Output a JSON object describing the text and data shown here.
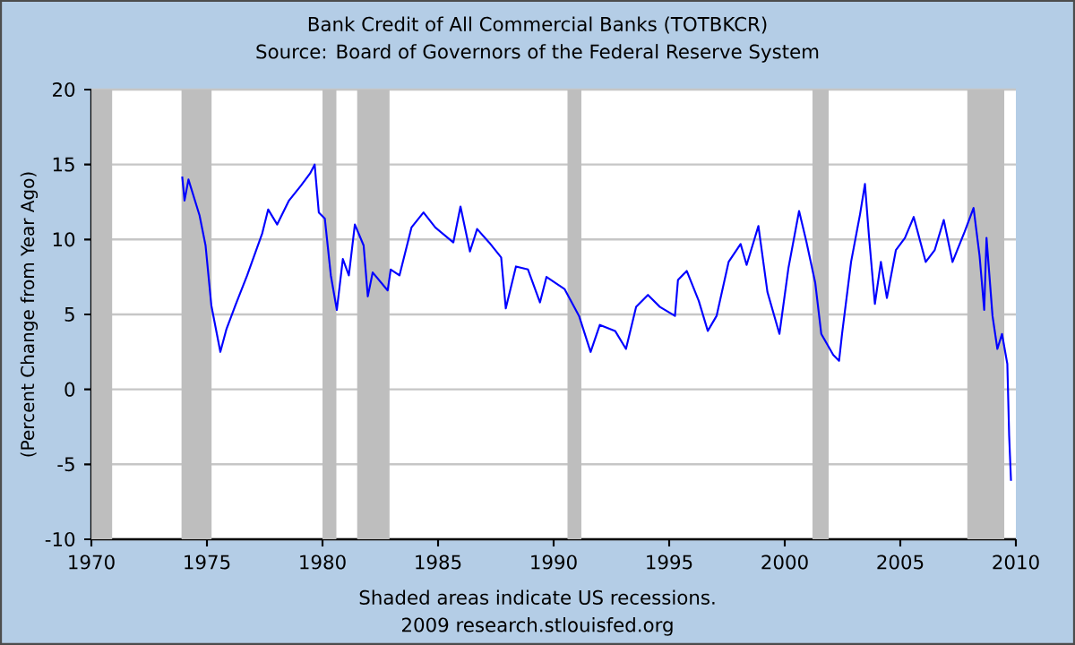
{
  "chart_data": {
    "type": "line",
    "title": "Bank Credit of All Commercial Banks (TOTBKCR)",
    "subtitle": "Source: Board of Governors of the Federal Reserve System",
    "ylabel": "(Percent Change from Year Ago)",
    "annotations": [
      "Shaded areas indicate US recessions.",
      "2009 research.stlouisfed.org"
    ],
    "series": [
      {
        "color": "#0000ff",
        "x": [
          1973.93,
          1974.03,
          1974.2,
          1974.68,
          1974.94,
          1975.19,
          1975.58,
          1975.84,
          1976.23,
          1976.74,
          1977.39,
          1977.65,
          1978.04,
          1978.55,
          1979.07,
          1979.46,
          1979.66,
          1979.84,
          1980.1,
          1980.36,
          1980.62,
          1980.88,
          1981.14,
          1981.4,
          1981.78,
          1981.96,
          1982.17,
          1982.82,
          1982.95,
          1983.33,
          1983.85,
          1984.37,
          1984.88,
          1985.66,
          1985.97,
          1986.38,
          1986.69,
          1987.21,
          1987.73,
          1987.93,
          1988.37,
          1988.89,
          1989.41,
          1989.69,
          1990.47,
          1991.1,
          1991.6,
          1992.0,
          1992.66,
          1993.13,
          1993.57,
          1994.08,
          1994.6,
          1995.25,
          1995.38,
          1995.76,
          1996.28,
          1996.67,
          1997.05,
          1997.57,
          1998.09,
          1998.35,
          1998.86,
          1999.25,
          1999.77,
          2000.16,
          2000.62,
          2000.93,
          2001.32,
          2001.58,
          2002.1,
          2002.35,
          2002.48,
          2002.87,
          2003.26,
          2003.47,
          2003.64,
          2003.9,
          2004.16,
          2004.42,
          2004.81,
          2005.2,
          2005.58,
          2006.1,
          2006.49,
          2006.88,
          2007.26,
          2007.78,
          2008.17,
          2008.43,
          2008.63,
          2008.73,
          2008.99,
          2009.2,
          2009.4,
          2009.63,
          2009.71,
          2009.79
        ],
        "values": [
          14.2,
          12.6,
          14.0,
          11.6,
          9.6,
          5.6,
          2.5,
          4.0,
          5.6,
          7.6,
          10.4,
          12.0,
          11.0,
          12.6,
          13.6,
          14.4,
          15.0,
          11.8,
          11.4,
          7.6,
          5.3,
          8.7,
          7.6,
          11.0,
          9.6,
          6.2,
          7.8,
          6.6,
          8.0,
          7.6,
          10.8,
          11.8,
          10.8,
          9.8,
          12.2,
          9.2,
          10.7,
          9.8,
          8.8,
          5.4,
          8.2,
          8.0,
          5.8,
          7.5,
          6.7,
          4.9,
          2.5,
          4.3,
          3.9,
          2.7,
          5.5,
          6.3,
          5.5,
          4.9,
          7.3,
          7.9,
          5.9,
          3.9,
          4.9,
          8.5,
          9.7,
          8.3,
          10.9,
          6.5,
          3.7,
          8.1,
          11.9,
          9.9,
          7.1,
          3.7,
          2.3,
          1.9,
          3.7,
          8.5,
          11.7,
          13.7,
          10.3,
          5.7,
          8.5,
          6.1,
          9.3,
          10.1,
          11.5,
          8.5,
          9.3,
          11.3,
          8.5,
          10.5,
          12.1,
          8.9,
          5.3,
          10.1,
          4.9,
          2.7,
          3.7,
          1.7,
          -3.1,
          -6.1
        ]
      }
    ],
    "bands": [
      {
        "axis": "x",
        "from": 1970,
        "to": 1970.9,
        "color": "#bebebe"
      },
      {
        "axis": "x",
        "from": 1973.9,
        "to": 1975.2,
        "color": "#bebebe"
      },
      {
        "axis": "x",
        "from": 1980.0,
        "to": 1980.6,
        "color": "#bebebe"
      },
      {
        "axis": "x",
        "from": 1981.5,
        "to": 1982.9,
        "color": "#bebebe"
      },
      {
        "axis": "x",
        "from": 1990.6,
        "to": 1991.2,
        "color": "#bebebe"
      },
      {
        "axis": "x",
        "from": 2001.2,
        "to": 2001.9,
        "color": "#bebebe"
      },
      {
        "axis": "x",
        "from": 2007.9,
        "to": 2009.5,
        "color": "#bebebe"
      }
    ],
    "xlim": [
      1970,
      2010
    ],
    "xticks": [
      1970,
      1975,
      1980,
      1985,
      1990,
      1995,
      2000,
      2005,
      2010
    ],
    "ylim": [
      -10,
      20
    ],
    "yticks": [
      -10,
      -5,
      0,
      5,
      10,
      15,
      20
    ],
    "grid": "y"
  }
}
